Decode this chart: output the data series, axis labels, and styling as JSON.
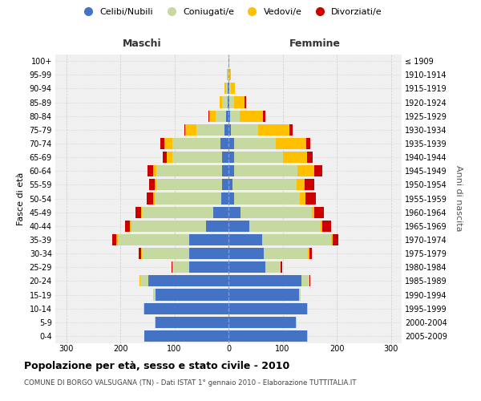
{
  "age_groups": [
    "0-4",
    "5-9",
    "10-14",
    "15-19",
    "20-24",
    "25-29",
    "30-34",
    "35-39",
    "40-44",
    "45-49",
    "50-54",
    "55-59",
    "60-64",
    "65-69",
    "70-74",
    "75-79",
    "80-84",
    "85-89",
    "90-94",
    "95-99",
    "100+"
  ],
  "birth_years": [
    "2005-2009",
    "2000-2004",
    "1995-1999",
    "1990-1994",
    "1985-1989",
    "1980-1984",
    "1975-1979",
    "1970-1974",
    "1965-1969",
    "1960-1964",
    "1955-1959",
    "1950-1954",
    "1945-1949",
    "1940-1944",
    "1935-1939",
    "1930-1934",
    "1925-1929",
    "1920-1924",
    "1915-1919",
    "1910-1914",
    "≤ 1909"
  ],
  "male": {
    "celibi": [
      155,
      135,
      155,
      135,
      148,
      72,
      72,
      72,
      42,
      28,
      14,
      12,
      12,
      12,
      15,
      8,
      4,
      2,
      1,
      0,
      0
    ],
    "coniugati": [
      1,
      1,
      2,
      4,
      15,
      30,
      88,
      133,
      138,
      132,
      122,
      122,
      122,
      92,
      88,
      52,
      20,
      10,
      4,
      2,
      0
    ],
    "vedovi": [
      0,
      0,
      0,
      0,
      1,
      1,
      1,
      2,
      2,
      2,
      3,
      3,
      5,
      10,
      15,
      20,
      12,
      5,
      2,
      1,
      0
    ],
    "divorziati": [
      0,
      0,
      0,
      0,
      1,
      2,
      5,
      8,
      9,
      10,
      12,
      10,
      10,
      8,
      8,
      2,
      1,
      0,
      0,
      0,
      0
    ]
  },
  "female": {
    "nubili": [
      145,
      125,
      145,
      130,
      135,
      68,
      65,
      62,
      38,
      22,
      10,
      8,
      10,
      10,
      10,
      5,
      3,
      2,
      1,
      0,
      0
    ],
    "coniugate": [
      1,
      1,
      2,
      4,
      14,
      28,
      82,
      128,
      132,
      132,
      122,
      118,
      118,
      90,
      78,
      50,
      18,
      8,
      3,
      2,
      0
    ],
    "vedove": [
      0,
      0,
      0,
      0,
      1,
      1,
      2,
      3,
      4,
      5,
      10,
      15,
      30,
      45,
      55,
      58,
      42,
      20,
      8,
      3,
      1
    ],
    "divorziate": [
      0,
      0,
      0,
      0,
      1,
      2,
      5,
      10,
      15,
      18,
      20,
      18,
      15,
      10,
      8,
      5,
      5,
      2,
      0,
      0,
      0
    ]
  },
  "colors": {
    "celibi": "#4472c4",
    "coniugati": "#c5d9a0",
    "vedovi": "#ffc000",
    "divorziati": "#cc0000"
  },
  "xlim": 320,
  "title": "Popolazione per età, sesso e stato civile - 2010",
  "subtitle": "COMUNE DI BORGO VALSUGANA (TN) - Dati ISTAT 1° gennaio 2010 - Elaborazione TUTTITALIA.IT",
  "ylabel_left": "Fasce di età",
  "ylabel_right": "Anni di nascita",
  "xlabel_left": "Maschi",
  "xlabel_right": "Femmine",
  "bg_color": "#f0f0f0",
  "grid_color": "#cccccc"
}
